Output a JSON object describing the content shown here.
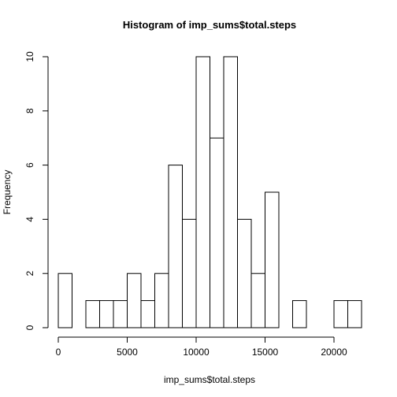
{
  "chart_data": {
    "type": "bar",
    "title": "Histogram of imp_sums$total.steps",
    "xlabel": "imp_sums$total.steps",
    "ylabel": "Frequency",
    "xlim": [
      0,
      22000
    ],
    "ylim": [
      0,
      10
    ],
    "bin_width": 1000,
    "bins": [
      {
        "x0": 0,
        "x1": 1000,
        "count": 2
      },
      {
        "x0": 1000,
        "x1": 2000,
        "count": 0
      },
      {
        "x0": 2000,
        "x1": 3000,
        "count": 1
      },
      {
        "x0": 3000,
        "x1": 4000,
        "count": 1
      },
      {
        "x0": 4000,
        "x1": 5000,
        "count": 1
      },
      {
        "x0": 5000,
        "x1": 6000,
        "count": 2
      },
      {
        "x0": 6000,
        "x1": 7000,
        "count": 1
      },
      {
        "x0": 7000,
        "x1": 8000,
        "count": 2
      },
      {
        "x0": 8000,
        "x1": 9000,
        "count": 6
      },
      {
        "x0": 9000,
        "x1": 10000,
        "count": 4
      },
      {
        "x0": 10000,
        "x1": 11000,
        "count": 10
      },
      {
        "x0": 11000,
        "x1": 12000,
        "count": 7
      },
      {
        "x0": 12000,
        "x1": 13000,
        "count": 10
      },
      {
        "x0": 13000,
        "x1": 14000,
        "count": 4
      },
      {
        "x0": 14000,
        "x1": 15000,
        "count": 2
      },
      {
        "x0": 15000,
        "x1": 16000,
        "count": 5
      },
      {
        "x0": 16000,
        "x1": 17000,
        "count": 0
      },
      {
        "x0": 17000,
        "x1": 18000,
        "count": 1
      },
      {
        "x0": 18000,
        "x1": 19000,
        "count": 0
      },
      {
        "x0": 19000,
        "x1": 20000,
        "count": 0
      },
      {
        "x0": 20000,
        "x1": 21000,
        "count": 1
      },
      {
        "x0": 21000,
        "x1": 22000,
        "count": 1
      }
    ],
    "x_ticks": [
      0,
      5000,
      10000,
      15000,
      20000
    ],
    "y_ticks": [
      0,
      2,
      4,
      6,
      8,
      10
    ],
    "grid": false,
    "legend": "none"
  },
  "colors": {
    "bar_fill": "#ffffff",
    "bar_stroke": "#000000",
    "axis": "#000000",
    "background": "#ffffff"
  }
}
